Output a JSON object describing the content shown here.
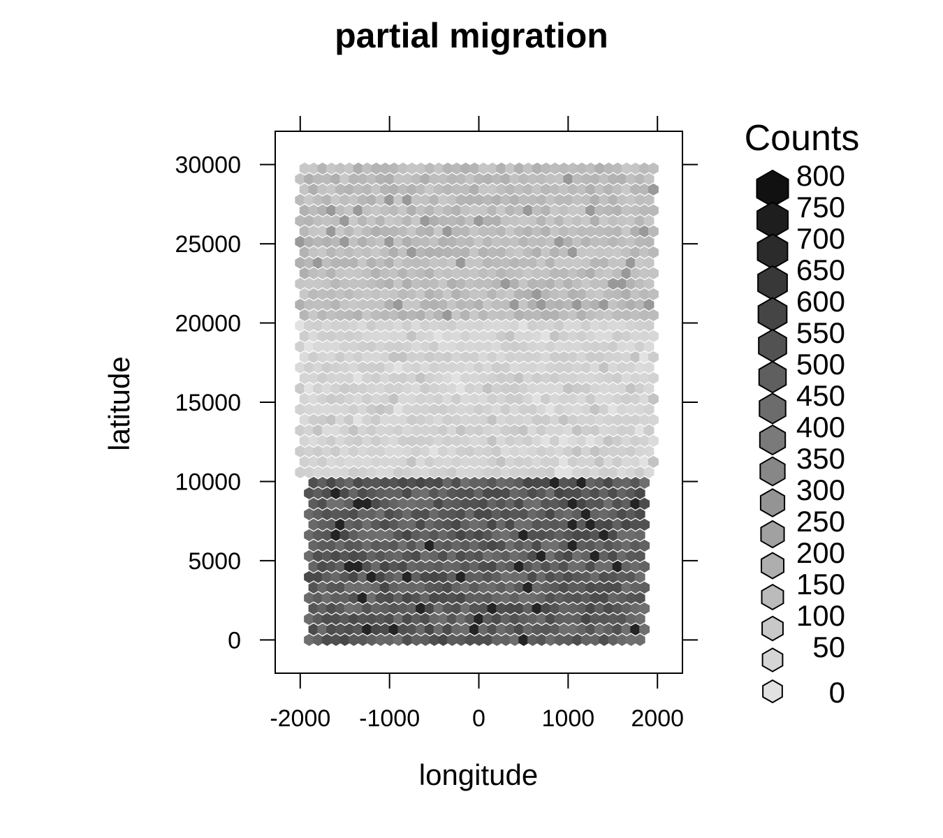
{
  "chart_data": {
    "type": "heatmap",
    "subtype": "hexbin",
    "title": "partial migration",
    "xlabel": "longitude",
    "ylabel": "latitude",
    "xlim": [
      -2280,
      2280
    ],
    "ylim": [
      -2100,
      32100
    ],
    "x_ticks": [
      -2000,
      -1000,
      0,
      1000,
      2000
    ],
    "x_tick_labels": [
      "-2000",
      "-1000",
      "0",
      "1000",
      "2000"
    ],
    "y_ticks": [
      0,
      5000,
      10000,
      15000,
      20000,
      25000,
      30000
    ],
    "y_tick_labels": [
      "0",
      "5000",
      "10000",
      "15000",
      "20000",
      "25000",
      "30000"
    ],
    "grid": false,
    "legend": {
      "title": "Counts",
      "placement": "right",
      "levels": [
        800,
        750,
        700,
        650,
        600,
        550,
        500,
        450,
        400,
        350,
        300,
        250,
        200,
        150,
        100,
        50,
        0
      ],
      "level_labels": [
        "800",
        "750",
        "700",
        "650",
        "600",
        "550",
        "500",
        "450",
        "400",
        "350",
        "300",
        "250",
        "200",
        "150",
        "100",
        "50",
        "0"
      ]
    },
    "colors": {
      "low": "#e2e2e2",
      "high": "#111111"
    },
    "regions": [
      {
        "band": "southern",
        "lat_range": [
          0,
          9800
        ],
        "lon_range": [
          -1900,
          1900
        ],
        "typical_count": 520,
        "count_range": [
          440,
          760
        ]
      },
      {
        "band": "middle",
        "lat_range": [
          10000,
          19800
        ],
        "lon_range": [
          -2000,
          2000
        ],
        "typical_count": 60,
        "count_range": [
          0,
          130
        ]
      },
      {
        "band": "northern",
        "lat_range": [
          20000,
          30000
        ],
        "lon_range": [
          -2000,
          2000
        ],
        "typical_count": 150,
        "count_range": [
          100,
          300
        ]
      }
    ]
  }
}
